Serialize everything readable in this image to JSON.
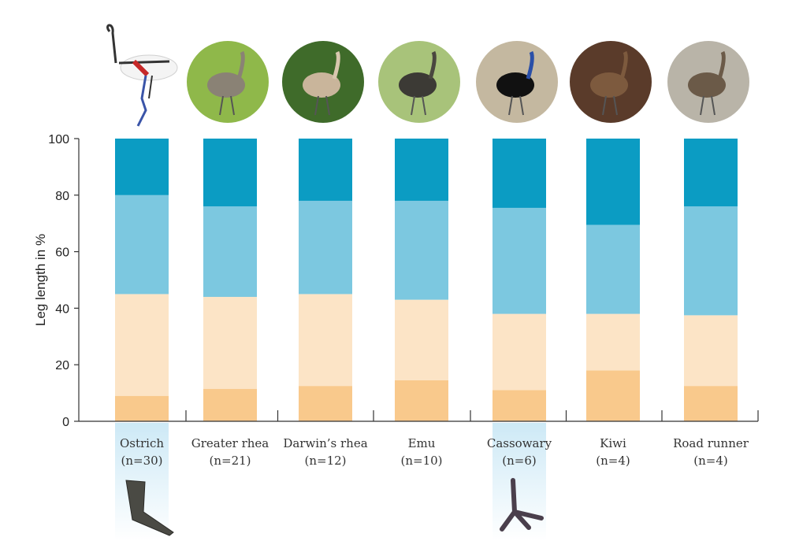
{
  "chart_data": {
    "type": "bar",
    "stacked": true,
    "ylabel": "Leg length in %",
    "ylim": [
      0,
      100
    ],
    "yticks": [
      "0",
      "20",
      "40",
      "60",
      "80",
      "100"
    ],
    "categories": [
      {
        "name": "Ostrich",
        "n": "(n=30)"
      },
      {
        "name": "Greater rhea",
        "n": "(n=21)"
      },
      {
        "name": "Darwin’s rhea",
        "n": "(n=12)"
      },
      {
        "name": "Emu",
        "n": "(n=10)"
      },
      {
        "name": "Cassowary",
        "n": "(n=6)"
      },
      {
        "name": "Kiwi",
        "n": "(n=4)"
      },
      {
        "name": "Road runner",
        "n": "(n=4)"
      }
    ],
    "series": [
      {
        "color": "#f9c98c",
        "values": [
          9,
          11.5,
          12.5,
          14.5,
          11,
          18,
          12.5
        ]
      },
      {
        "color": "#fce4c6",
        "values": [
          36,
          32.5,
          32.5,
          28.5,
          27,
          20,
          25
        ]
      },
      {
        "color": "#7cc8e0",
        "values": [
          35,
          32,
          33,
          35,
          37.5,
          31.5,
          38.5
        ]
      },
      {
        "color": "#0b9cc3",
        "values": [
          20,
          24,
          22,
          22,
          24.5,
          30.5,
          24
        ]
      }
    ],
    "highlighted": [
      "Ostrich",
      "Cassowary"
    ],
    "grid": false,
    "legend": "none"
  },
  "colors": {
    "axis": "#333333",
    "highlight": "#cde9f6"
  },
  "icons": {
    "photos": [
      "ostrich-skeleton-icon",
      "greater-rhea-photo",
      "darwins-rhea-photo",
      "emu-photo",
      "cassowary-photo",
      "kiwi-photo",
      "road-runner-photo"
    ],
    "feet": [
      "ostrich-foot-icon",
      "cassowary-foot-icon"
    ]
  }
}
